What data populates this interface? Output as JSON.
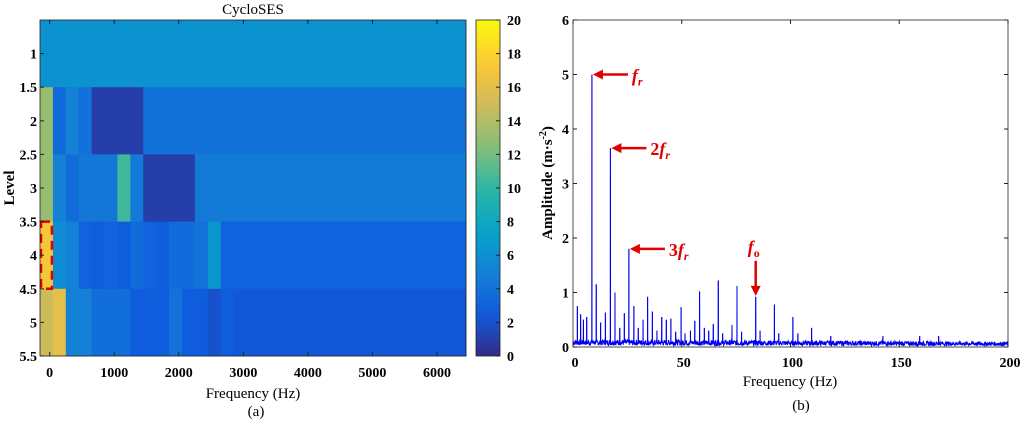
{
  "chart_data": [
    {
      "type": "heatmap",
      "title": "CycloSES",
      "xlabel": "Frequency (Hz)",
      "ylabel": "Level",
      "caption": "(a)",
      "xlim": [
        -150,
        6450
      ],
      "ylim": [
        0.5,
        5.5
      ],
      "xticks": [
        "0",
        "1000",
        "2000",
        "3000",
        "4000",
        "5000",
        "6000"
      ],
      "xtick_values": [
        0,
        1000,
        2000,
        3000,
        4000,
        5000,
        6000
      ],
      "yticks": [
        "1",
        "1.5",
        "2",
        "2.5",
        "3",
        "3.5",
        "4",
        "4.5",
        "5",
        "5.5"
      ],
      "ytick_values": [
        1,
        1.5,
        2,
        2.5,
        3,
        3.5,
        4,
        4.5,
        5,
        5.5
      ],
      "colorbar": {
        "range": [
          0,
          20
        ],
        "ticks": [
          "0",
          "2",
          "4",
          "6",
          "8",
          "10",
          "12",
          "14",
          "16",
          "18",
          "20"
        ],
        "colormap": "parula"
      },
      "highlight": {
        "level_range": [
          3.5,
          4.5
        ],
        "freq_range": [
          -150,
          50
        ],
        "color": "#e00000",
        "style": "dashed"
      },
      "rows": [
        {
          "level_range": [
            0.5,
            1.5
          ],
          "cells": [
            {
              "from": -150,
              "to": 6450,
              "value": 6.2
            }
          ]
        },
        {
          "level_range": [
            1.5,
            2.5
          ],
          "cells": [
            {
              "from": -150,
              "to": 50,
              "value": 13
            },
            {
              "from": 50,
              "to": 250,
              "value": 3.4
            },
            {
              "from": 250,
              "to": 450,
              "value": 5
            },
            {
              "from": 450,
              "to": 650,
              "value": 4
            },
            {
              "from": 650,
              "to": 1450,
              "value": 1
            },
            {
              "from": 1450,
              "to": 6450,
              "value": 4
            }
          ]
        },
        {
          "level_range": [
            2.5,
            3.5
          ],
          "cells": [
            {
              "from": -150,
              "to": 50,
              "value": 13
            },
            {
              "from": 50,
              "to": 250,
              "value": 5
            },
            {
              "from": 250,
              "to": 450,
              "value": 3.6
            },
            {
              "from": 450,
              "to": 1050,
              "value": 4.3
            },
            {
              "from": 1050,
              "to": 1250,
              "value": 10.5
            },
            {
              "from": 1250,
              "to": 1450,
              "value": 4.6
            },
            {
              "from": 1450,
              "to": 2250,
              "value": 1
            },
            {
              "from": 2250,
              "to": 6450,
              "value": 4.5
            }
          ]
        },
        {
          "level_range": [
            3.5,
            4.5
          ],
          "cells": [
            {
              "from": -150,
              "to": 50,
              "value": 17
            },
            {
              "from": 50,
              "to": 250,
              "value": 5.8
            },
            {
              "from": 250,
              "to": 450,
              "value": 5
            },
            {
              "from": 450,
              "to": 650,
              "value": 3
            },
            {
              "from": 650,
              "to": 850,
              "value": 2.6
            },
            {
              "from": 850,
              "to": 1050,
              "value": 3
            },
            {
              "from": 1050,
              "to": 1250,
              "value": 2.5
            },
            {
              "from": 1250,
              "to": 1450,
              "value": 3.6
            },
            {
              "from": 1450,
              "to": 1650,
              "value": 3
            },
            {
              "from": 1650,
              "to": 1850,
              "value": 2.6
            },
            {
              "from": 1850,
              "to": 2250,
              "value": 3.5
            },
            {
              "from": 2250,
              "to": 2450,
              "value": 4
            },
            {
              "from": 2450,
              "to": 2650,
              "value": 6.6
            },
            {
              "from": 2650,
              "to": 6450,
              "value": 3
            }
          ]
        },
        {
          "level_range": [
            4.5,
            5.5
          ],
          "cells": [
            {
              "from": -150,
              "to": 50,
              "value": 14.8
            },
            {
              "from": 50,
              "to": 250,
              "value": 16
            },
            {
              "from": 250,
              "to": 650,
              "value": 5
            },
            {
              "from": 650,
              "to": 1250,
              "value": 3.8
            },
            {
              "from": 1250,
              "to": 1850,
              "value": 2.5
            },
            {
              "from": 1850,
              "to": 2050,
              "value": 4
            },
            {
              "from": 2050,
              "to": 2450,
              "value": 2.5
            },
            {
              "from": 2450,
              "to": 2650,
              "value": 2
            },
            {
              "from": 2650,
              "to": 2850,
              "value": 2.5
            },
            {
              "from": 2850,
              "to": 6450,
              "value": 2.3
            }
          ]
        }
      ]
    },
    {
      "type": "line",
      "xlabel": "Frequency (Hz)",
      "ylabel": "Amplitude (m·s",
      "ylabel_sup": "-2",
      "ylabel_end": ")",
      "caption": "(b)",
      "xlim": [
        0,
        200
      ],
      "ylim": [
        0,
        6
      ],
      "xticks": [
        "0",
        "50",
        "100",
        "150",
        "200"
      ],
      "xtick_values": [
        0,
        50,
        100,
        150,
        200
      ],
      "yticks": [
        "0",
        "1",
        "2",
        "3",
        "4",
        "5",
        "6"
      ],
      "ytick_values": [
        0,
        1,
        2,
        3,
        4,
        5,
        6
      ],
      "color": "#0000ee",
      "noise_floor": [
        0.1,
        0.07
      ],
      "peaks": [
        [
          2.0,
          0.75
        ],
        [
          3.5,
          0.6
        ],
        [
          4.8,
          0.5
        ],
        [
          6.3,
          0.55
        ],
        [
          8.7,
          5.0
        ],
        [
          10.7,
          1.15
        ],
        [
          12.7,
          0.45
        ],
        [
          14.9,
          0.63
        ],
        [
          17.2,
          3.65
        ],
        [
          19.3,
          1.0
        ],
        [
          21.5,
          0.35
        ],
        [
          23.6,
          0.62
        ],
        [
          25.7,
          1.8
        ],
        [
          28.0,
          0.75
        ],
        [
          30.0,
          0.35
        ],
        [
          32.2,
          0.5
        ],
        [
          34.3,
          0.92
        ],
        [
          36.5,
          0.65
        ],
        [
          38.6,
          0.3
        ],
        [
          40.8,
          0.55
        ],
        [
          42.9,
          0.5
        ],
        [
          45.0,
          0.52
        ],
        [
          47.2,
          0.28
        ],
        [
          49.7,
          0.73
        ],
        [
          51.5,
          0.25
        ],
        [
          54.0,
          0.3
        ],
        [
          56.0,
          0.48
        ],
        [
          58.2,
          1.02
        ],
        [
          60.4,
          0.35
        ],
        [
          62.4,
          0.3
        ],
        [
          64.5,
          0.42
        ],
        [
          66.8,
          1.22
        ],
        [
          68.8,
          0.25
        ],
        [
          73.1,
          0.4
        ],
        [
          75.4,
          1.12
        ],
        [
          77.5,
          0.28
        ],
        [
          84.0,
          0.92
        ],
        [
          86.0,
          0.3
        ],
        [
          92.6,
          0.78
        ],
        [
          94.6,
          0.25
        ],
        [
          101.1,
          0.55
        ],
        [
          103.4,
          0.25
        ],
        [
          109.7,
          0.35
        ],
        [
          118.5,
          0.2
        ],
        [
          142.5,
          0.2
        ],
        [
          159.4,
          0.2
        ],
        [
          168.1,
          0.2
        ]
      ],
      "annotations": [
        {
          "label": "f",
          "sub": "r",
          "prefix": "",
          "x": 8.7,
          "y": 5.0,
          "direction": "left"
        },
        {
          "label": "f",
          "sub": "r",
          "prefix": "2",
          "x": 17.2,
          "y": 3.65,
          "direction": "left"
        },
        {
          "label": "f",
          "sub": "r",
          "prefix": "3",
          "x": 25.7,
          "y": 1.8,
          "direction": "left"
        },
        {
          "label": "f",
          "sub": "o",
          "prefix": "",
          "x": 84.0,
          "y": 0.92,
          "direction": "down"
        }
      ],
      "annotation_color": "#e00000"
    }
  ]
}
